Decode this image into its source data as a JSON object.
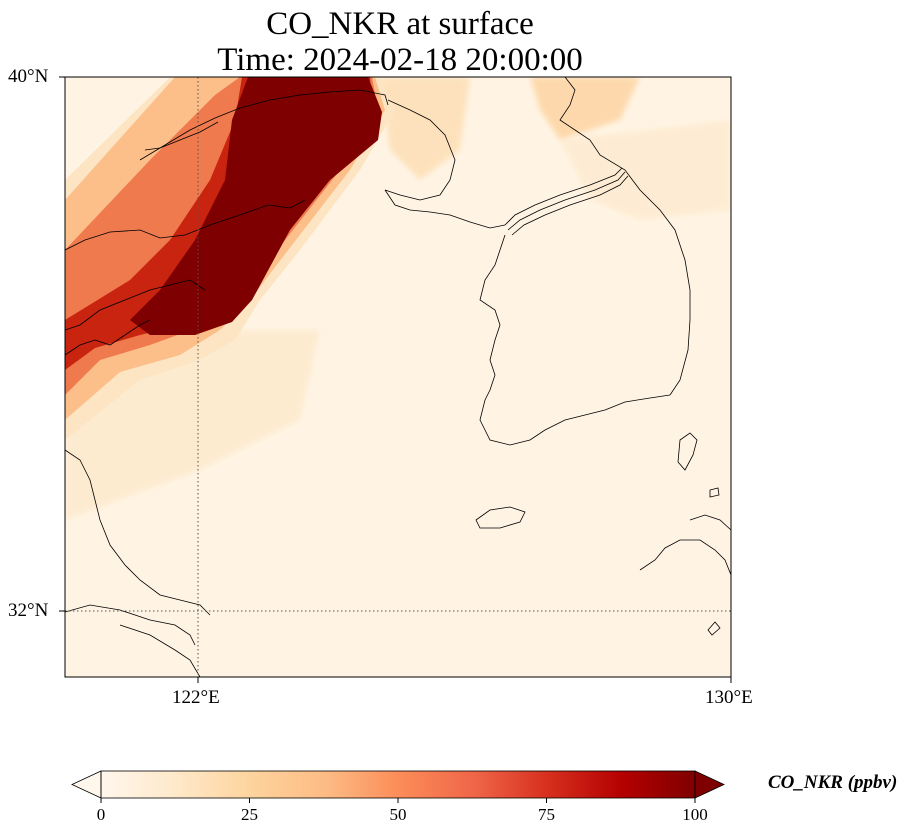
{
  "title": {
    "line1": "CO_NKR at surface",
    "line2": "Time: 2024-02-18 20:00:00"
  },
  "axes": {
    "lat_ticks": [
      "40°N",
      "32°N"
    ],
    "lon_ticks": [
      "122°E",
      "130°E"
    ]
  },
  "colorbar": {
    "label": "CO_NKR (ppbv)",
    "ticks": [
      "0",
      "25",
      "50",
      "75",
      "100"
    ],
    "min": 0,
    "max": 100,
    "extend": "both",
    "colormap": "OrRd",
    "colors": [
      "#fff7ec",
      "#fee8c8",
      "#fdd49e",
      "#fdbb84",
      "#fc8d59",
      "#ef6548",
      "#d7301f",
      "#b30000",
      "#7f0000"
    ]
  },
  "map": {
    "field_colors": {
      "background": "#fff4e4",
      "low": "#fde5c4",
      "mid": "#fcbf8a",
      "high": "#ef7a4e",
      "higher": "#c8240f",
      "max": "#7f0000"
    },
    "coastline_color": "#000000",
    "gridline_color": "#555555"
  }
}
